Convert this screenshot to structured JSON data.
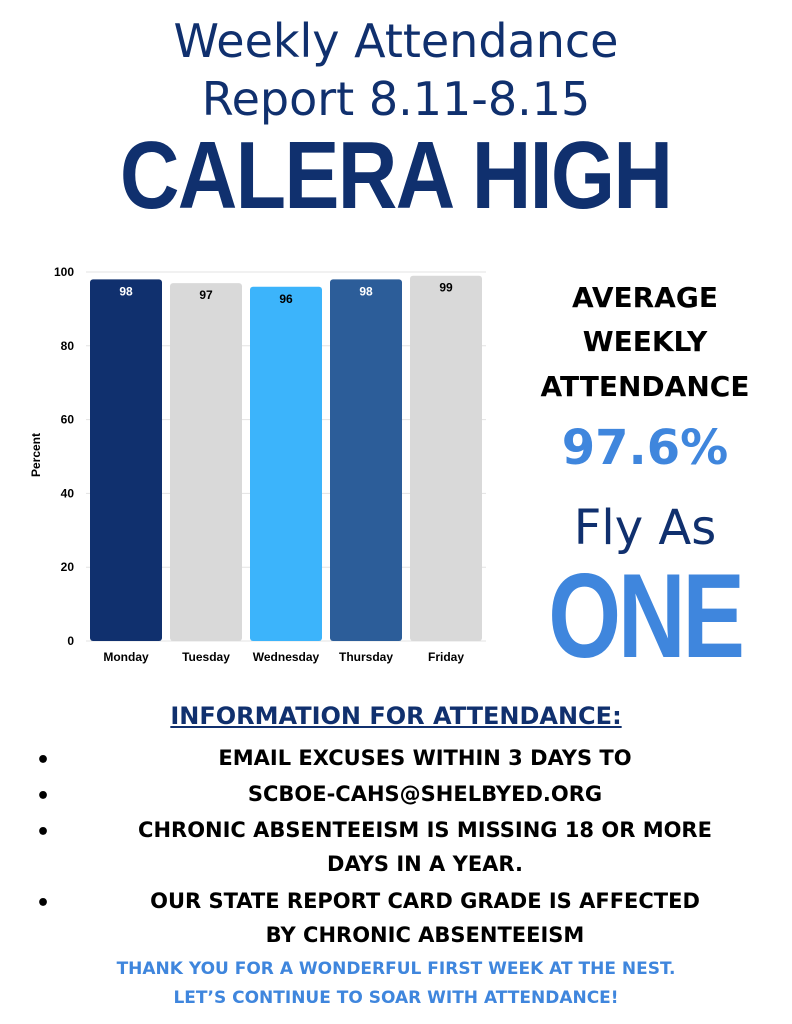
{
  "header": {
    "title_line1": "Weekly Attendance",
    "title_line2": "Report 8.11-8.15",
    "school": "CALERA HIGH"
  },
  "chart_data": {
    "type": "bar",
    "categories": [
      "Monday",
      "Tuesday",
      "Wednesday",
      "Thursday",
      "Friday"
    ],
    "values": [
      98,
      97,
      96,
      98,
      99
    ],
    "bar_colors": [
      "#10306e",
      "#d9d9d9",
      "#3cb4fb",
      "#2c5d99",
      "#d9d9d9"
    ],
    "label_colors": [
      "#ffffff",
      "#000000",
      "#000000",
      "#ffffff",
      "#000000"
    ],
    "ylabel": "Percent",
    "xlabel": "",
    "ylim": [
      0,
      100
    ],
    "yticks": [
      0,
      20,
      40,
      60,
      80,
      100
    ],
    "grid": true
  },
  "average": {
    "line1": "AVERAGE",
    "line2": "WEEKLY",
    "line3": "ATTENDANCE",
    "value": "97.6%"
  },
  "slogan": {
    "line1": "Fly As",
    "line2": "ONE"
  },
  "info": {
    "heading": "INFORMATION FOR ATTENDANCE:",
    "bullet_symbol": "•",
    "items": [
      {
        "text": "EMAIL EXCUSES WITHIN 3 DAYS TO"
      },
      {
        "text": "SCBOE-CAHS@SHELBYED.ORG"
      },
      {
        "text": "CHRONIC ABSENTEEISM IS MISSING 18 OR MORE",
        "text2": "DAYS IN A YEAR."
      },
      {
        "text": "OUR STATE REPORT CARD GRADE IS AFFECTED",
        "text2": "BY CHRONIC ABSENTEEISM"
      }
    ]
  },
  "footer": {
    "line1": "THANK YOU FOR A WONDERFUL FIRST WEEK AT THE NEST.",
    "line2": "LET’S CONTINUE TO SOAR WITH ATTENDANCE!"
  },
  "colors": {
    "navy": "#10306e",
    "accent_blue": "#3f86dd"
  }
}
